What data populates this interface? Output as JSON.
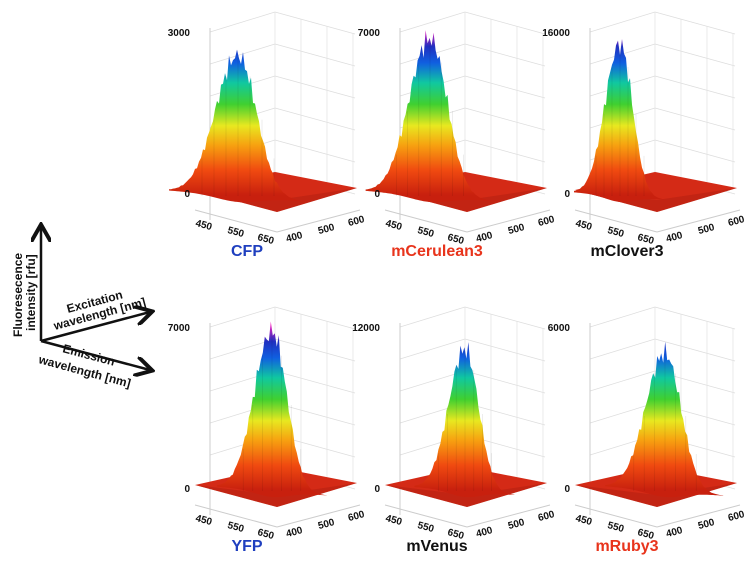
{
  "legend": {
    "z_label_line1": "Fluoresecence",
    "z_label_line2": "intensity [rfu]",
    "excitation_line1": "Excitation",
    "excitation_line2": "wavelength [nm]",
    "emission_line1": "Emission",
    "emission_line2": "wavelength [nm]"
  },
  "chart_data": [
    {
      "type": "surface",
      "title": "CFP",
      "title_color": "#1f3fbf",
      "zlim": [
        0,
        3000
      ],
      "z_ticks": [
        "0",
        "3000"
      ],
      "emission_ticks": [
        "450",
        "550",
        "650"
      ],
      "excitation_ticks": [
        "400",
        "500",
        "600"
      ],
      "peak_value": 2600,
      "peak_emission_nm": 480,
      "peak_width": 30
    },
    {
      "type": "surface",
      "title": "mCerulean3",
      "title_color": "#e8341c",
      "zlim": [
        0,
        7000
      ],
      "z_ticks": [
        "0",
        "7000"
      ],
      "emission_ticks": [
        "450",
        "550",
        "650"
      ],
      "excitation_ticks": [
        "400",
        "500",
        "600"
      ],
      "peak_value": 6800,
      "peak_emission_nm": 480,
      "peak_width": 28
    },
    {
      "type": "surface",
      "title": "mClover3",
      "title_color": "#111111",
      "zlim": [
        0,
        16000
      ],
      "z_ticks": [
        "0",
        "16000"
      ],
      "emission_ticks": [
        "450",
        "550",
        "650"
      ],
      "excitation_ticks": [
        "400",
        "500",
        "600"
      ],
      "peak_value": 15000,
      "peak_emission_nm": 515,
      "peak_width": 20
    },
    {
      "type": "surface",
      "title": "YFP",
      "title_color": "#1f3fbf",
      "zlim": [
        0,
        7000
      ],
      "z_ticks": [
        "0",
        "7000"
      ],
      "emission_ticks": [
        "450",
        "550",
        "650"
      ],
      "excitation_ticks": [
        "400",
        "500",
        "600"
      ],
      "peak_value": 6900,
      "peak_emission_nm": 530,
      "peak_width": 24
    },
    {
      "type": "surface",
      "title": "mVenus",
      "title_color": "#111111",
      "zlim": [
        0,
        12000
      ],
      "z_ticks": [
        "0",
        "12000"
      ],
      "emission_ticks": [
        "450",
        "550",
        "650"
      ],
      "excitation_ticks": [
        "400",
        "500",
        "600"
      ],
      "peak_value": 10500,
      "peak_emission_nm": 530,
      "peak_width": 22
    },
    {
      "type": "surface",
      "title": "mRuby3",
      "title_color": "#e8341c",
      "zlim": [
        0,
        6000
      ],
      "z_ticks": [
        "0",
        "6000"
      ],
      "emission_ticks": [
        "450",
        "550",
        "650"
      ],
      "excitation_ticks": [
        "400",
        "500",
        "600"
      ],
      "peak_value": 5100,
      "peak_emission_nm": 590,
      "peak_width": 26
    }
  ]
}
